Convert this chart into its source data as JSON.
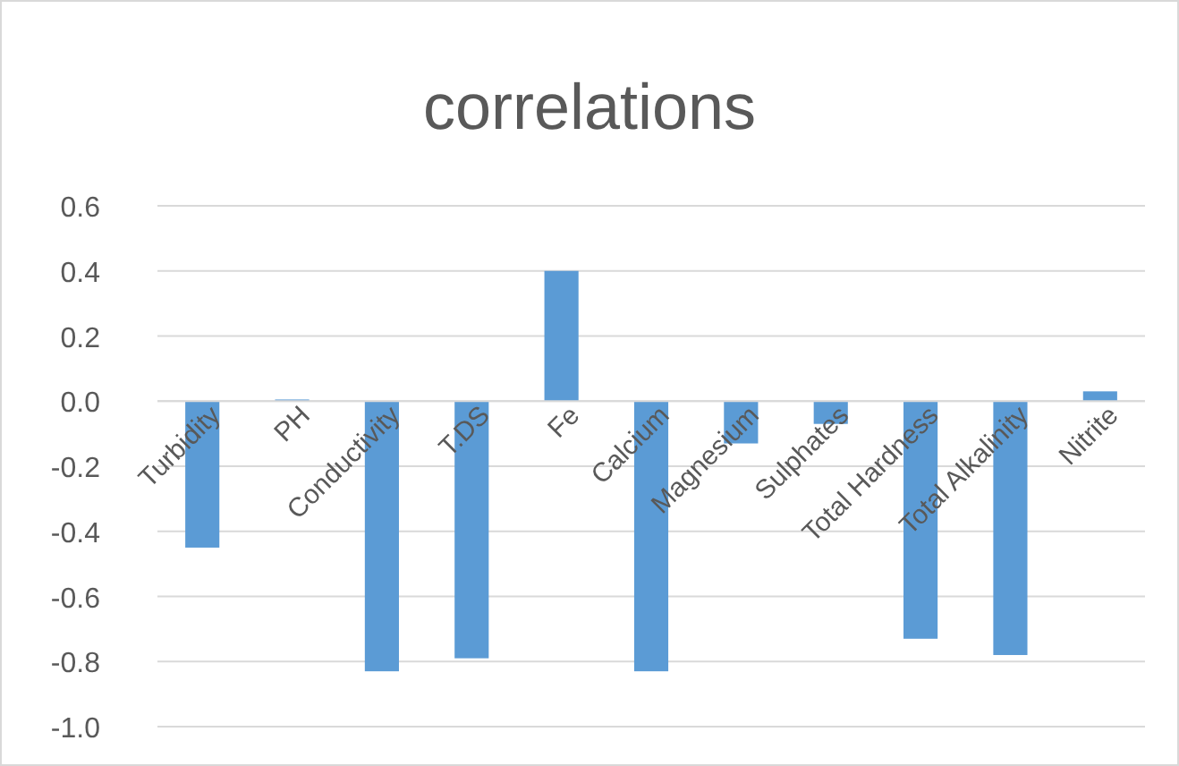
{
  "chart_data": {
    "type": "bar",
    "title": "correlations",
    "categories": [
      "Turbidity",
      "PH",
      "Conductivity",
      "T.DS",
      "Fe",
      "Calcium",
      "Magnesium",
      "Sulphates",
      "Total Hardness",
      "Total Alkalinity",
      "Nitrite"
    ],
    "values": [
      -0.45,
      0.005,
      -0.83,
      -0.79,
      0.4,
      -0.83,
      -0.13,
      -0.07,
      -0.73,
      -0.78,
      0.03
    ],
    "color": "#5b9bd5",
    "ylim": [
      -1.0,
      0.6
    ],
    "yticks": [
      {
        "value": -1,
        "label": "-1.0"
      },
      {
        "value": -0.8,
        "label": "-0.8"
      },
      {
        "value": -0.6,
        "label": "-0.6"
      },
      {
        "value": -0.4,
        "label": "-0.4"
      },
      {
        "value": -0.2,
        "label": "-0.2"
      },
      {
        "value": 0,
        "label": "0.0"
      },
      {
        "value": 0.2,
        "label": "0.2"
      },
      {
        "value": 0.4,
        "label": "0.4"
      },
      {
        "value": 0.6,
        "label": "0.6"
      }
    ],
    "grid": true
  }
}
